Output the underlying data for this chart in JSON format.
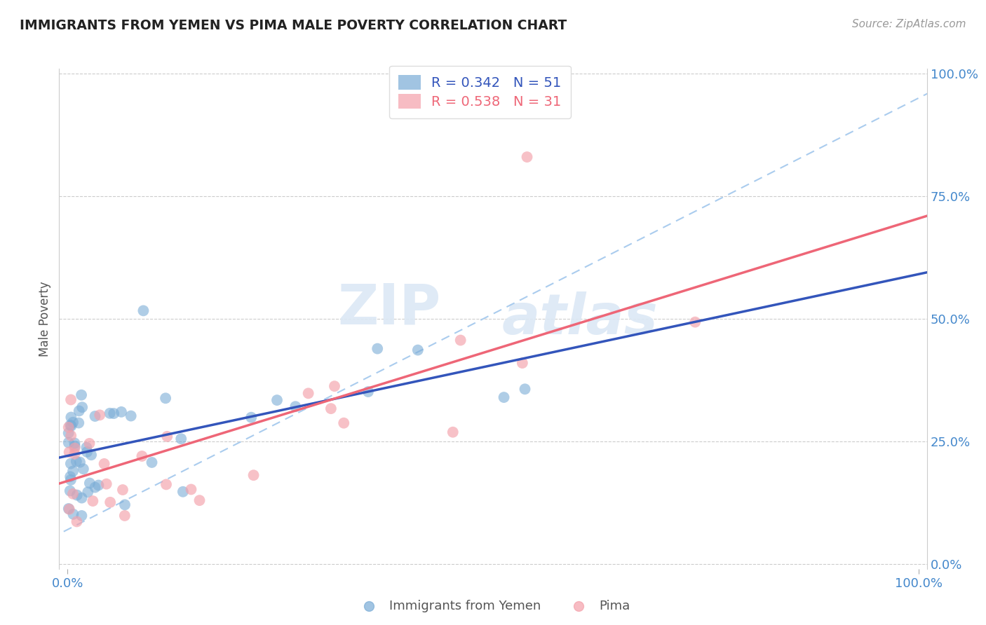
{
  "title": "IMMIGRANTS FROM YEMEN VS PIMA MALE POVERTY CORRELATION CHART",
  "source_text": "Source: ZipAtlas.com",
  "ylabel_label": "Male Poverty",
  "R1": 0.342,
  "N1": 51,
  "R2": 0.538,
  "N2": 31,
  "legend_label_1": "Immigrants from Yemen",
  "legend_label_2": "Pima",
  "color_blue": "#7AACD6",
  "color_pink": "#F4A0AA",
  "color_line_blue": "#3355BB",
  "color_line_pink": "#EE6677",
  "color_dashed": "#AACCEE",
  "title_color": "#222222",
  "axis_tick_color": "#4488CC",
  "background_color": "#FFFFFF",
  "watermark_color": "#DCE8F5",
  "grid_color": "#CCCCCC"
}
